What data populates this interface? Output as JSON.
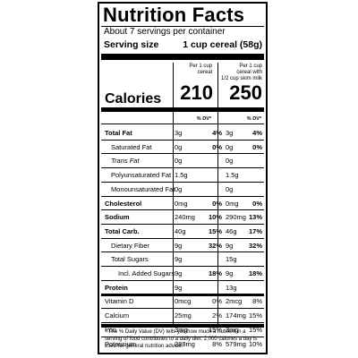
{
  "label": {
    "title": "Nutrition Facts",
    "servings_per_container": "About 7 servings per container",
    "serving_size_label": "Serving size",
    "serving_size_value": "1 cup cereal (58g)",
    "column1_header": [
      "Per 1 cup",
      "cereal"
    ],
    "column2_header": [
      "Per 1 cup",
      "cereal with",
      "1/2 cup skim milk"
    ],
    "calories_label": "Calories",
    "calories_col1": "210",
    "calories_col2": "250",
    "dv_header": "% DV*",
    "nutrients": [
      {
        "name": "Total Fat",
        "style": "bold",
        "amt1": "3g",
        "pct1": "4%",
        "amt2": "3g",
        "pct2": "4%",
        "pct_bold": true
      },
      {
        "name": "Saturated Fat",
        "style": "indent",
        "amt1": "0g",
        "pct1": "0%",
        "amt2": "0g",
        "pct2": "0%",
        "pct_bold": true
      },
      {
        "name": "Trans Fat",
        "style": "indent-italic-first",
        "amt1": "0g",
        "pct1": "",
        "amt2": "0g",
        "pct2": "",
        "pct_bold": false
      },
      {
        "name": "Polyunsaturated Fat",
        "style": "indent",
        "amt1": "1.5g",
        "pct1": "",
        "amt2": "1.5g",
        "pct2": "",
        "pct_bold": false
      },
      {
        "name": "Monounsaturated Fat",
        "style": "indent",
        "amt1": "0g",
        "pct1": "",
        "amt2": "0g",
        "pct2": "",
        "pct_bold": false
      },
      {
        "name": "Cholesterol",
        "style": "bold",
        "amt1": "0mg",
        "pct1": "0%",
        "amt2": "0mg",
        "pct2": "0%",
        "pct_bold": true
      },
      {
        "name": "Sodium",
        "style": "bold",
        "amt1": "240mg",
        "pct1": "10%",
        "amt2": "290mg",
        "pct2": "13%",
        "pct_bold": true
      },
      {
        "name": "Total Carb.",
        "style": "bold",
        "amt1": "40g",
        "pct1": "15%",
        "amt2": "46g",
        "pct2": "17%",
        "pct_bold": true
      },
      {
        "name": "Dietary Fiber",
        "style": "indent",
        "amt1": "9g",
        "pct1": "32%",
        "amt2": "9g",
        "pct2": "32%",
        "pct_bold": true
      },
      {
        "name": "Total Sugars",
        "style": "indent",
        "amt1": "9g",
        "pct1": "",
        "amt2": "15g",
        "pct2": "",
        "pct_bold": false
      },
      {
        "name": "Incl. Added Sugars",
        "style": "indent2",
        "amt1": "9g",
        "pct1": "18%",
        "amt2": "9g",
        "pct2": "18%",
        "pct_bold": true
      },
      {
        "name": "Protein",
        "style": "bold",
        "amt1": "9g",
        "pct1": "",
        "amt2": "13g",
        "pct2": "",
        "pct_bold": false
      },
      {
        "name": "Vitamin D",
        "style": "plain",
        "amt1": "0mcg",
        "pct1": "0%",
        "amt2": "2mcg",
        "pct2": "8%",
        "pct_bold": false
      },
      {
        "name": "Calcium",
        "style": "plain",
        "amt1": "25mg",
        "pct1": "2%",
        "amt2": "174mg",
        "pct2": "15%",
        "pct_bold": false
      },
      {
        "name": "Iron",
        "style": "plain",
        "amt1": "3mg",
        "pct1": "15%",
        "amt2": "3mg",
        "pct2": "15%",
        "pct_bold": false
      },
      {
        "name": "Potassium",
        "style": "plain",
        "amt1": "388mg",
        "pct1": "8%",
        "amt2": "579mg",
        "pct2": "10%",
        "pct_bold": false
      }
    ],
    "footnote": "* The % Daily Value (DV) tells you how much a nutrient in a serving of food contributes to a daily diet. 2,000 calories a day is used for general nutrition advice."
  }
}
